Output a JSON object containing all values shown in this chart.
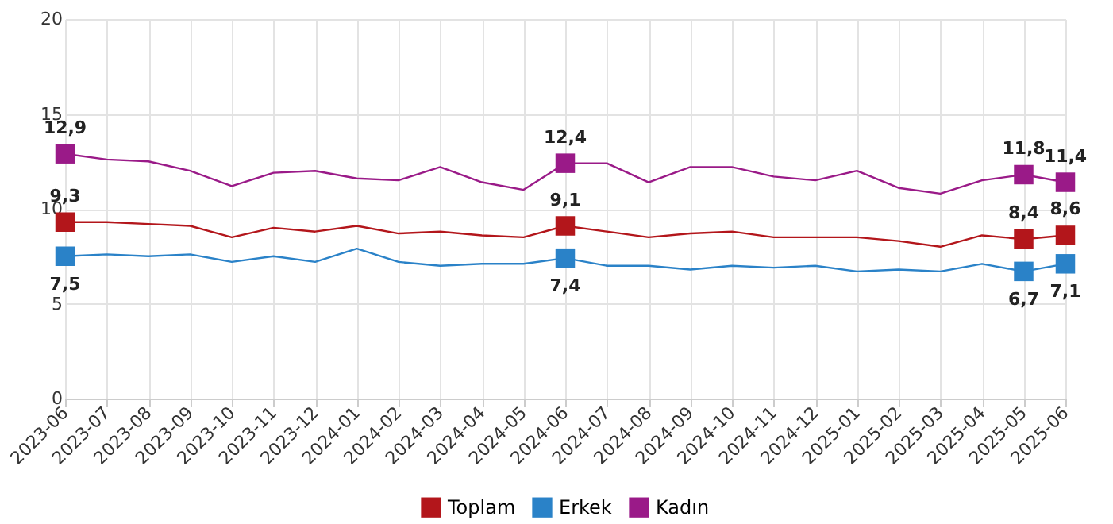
{
  "chart_data": {
    "type": "line",
    "categories": [
      "2023-06",
      "2023-07",
      "2023-08",
      "2023-09",
      "2023-10",
      "2023-11",
      "2023-12",
      "2024-01",
      "2024-02",
      "2024-03",
      "2024-04",
      "2024-05",
      "2024-06",
      "2024-07",
      "2024-08",
      "2024-09",
      "2024-10",
      "2024-11",
      "2024-12",
      "2025-01",
      "2025-02",
      "2025-03",
      "2025-04",
      "2025-05",
      "2025-06"
    ],
    "series": [
      {
        "name": "Toplam",
        "color": "#b3161b",
        "values": [
          9.3,
          9.3,
          9.2,
          9.1,
          8.5,
          9.0,
          8.8,
          9.1,
          8.7,
          8.8,
          8.6,
          8.5,
          9.1,
          8.8,
          8.5,
          8.7,
          8.8,
          8.5,
          8.5,
          8.5,
          8.3,
          8.0,
          8.6,
          8.4,
          8.6
        ],
        "value_labels": [
          "9,3",
          null,
          null,
          null,
          null,
          null,
          null,
          null,
          null,
          null,
          null,
          null,
          "9,1",
          null,
          null,
          null,
          null,
          null,
          null,
          null,
          null,
          null,
          null,
          "8,4",
          "8,6"
        ]
      },
      {
        "name": "Erkek",
        "color": "#2a82c8",
        "values": [
          7.5,
          7.6,
          7.5,
          7.6,
          7.2,
          7.5,
          7.2,
          7.9,
          7.2,
          7.0,
          7.1,
          7.1,
          7.4,
          7.0,
          7.0,
          6.8,
          7.0,
          6.9,
          7.0,
          6.7,
          6.8,
          6.7,
          7.1,
          6.7,
          7.1
        ],
        "value_labels": [
          "7,5",
          null,
          null,
          null,
          null,
          null,
          null,
          null,
          null,
          null,
          null,
          null,
          "7,4",
          null,
          null,
          null,
          null,
          null,
          null,
          null,
          null,
          null,
          null,
          "6,7",
          "7,1"
        ]
      },
      {
        "name": "Kadın",
        "color": "#9a1a88",
        "values": [
          12.9,
          12.6,
          12.5,
          12.0,
          11.2,
          11.9,
          12.0,
          11.6,
          11.5,
          12.2,
          11.4,
          11.0,
          12.4,
          12.4,
          11.4,
          12.2,
          12.2,
          11.7,
          11.5,
          12.0,
          11.1,
          10.8,
          11.5,
          11.8,
          11.4
        ],
        "value_labels": [
          "12,9",
          null,
          null,
          null,
          null,
          null,
          null,
          null,
          null,
          null,
          null,
          null,
          "12,4",
          null,
          null,
          null,
          null,
          null,
          null,
          null,
          null,
          null,
          null,
          "11,8",
          "11,4"
        ]
      }
    ],
    "ylim": [
      0,
      20
    ],
    "yticks": [
      0,
      5,
      10,
      15,
      20
    ],
    "grid": true,
    "legend": "bottom",
    "line_style": "solid"
  }
}
